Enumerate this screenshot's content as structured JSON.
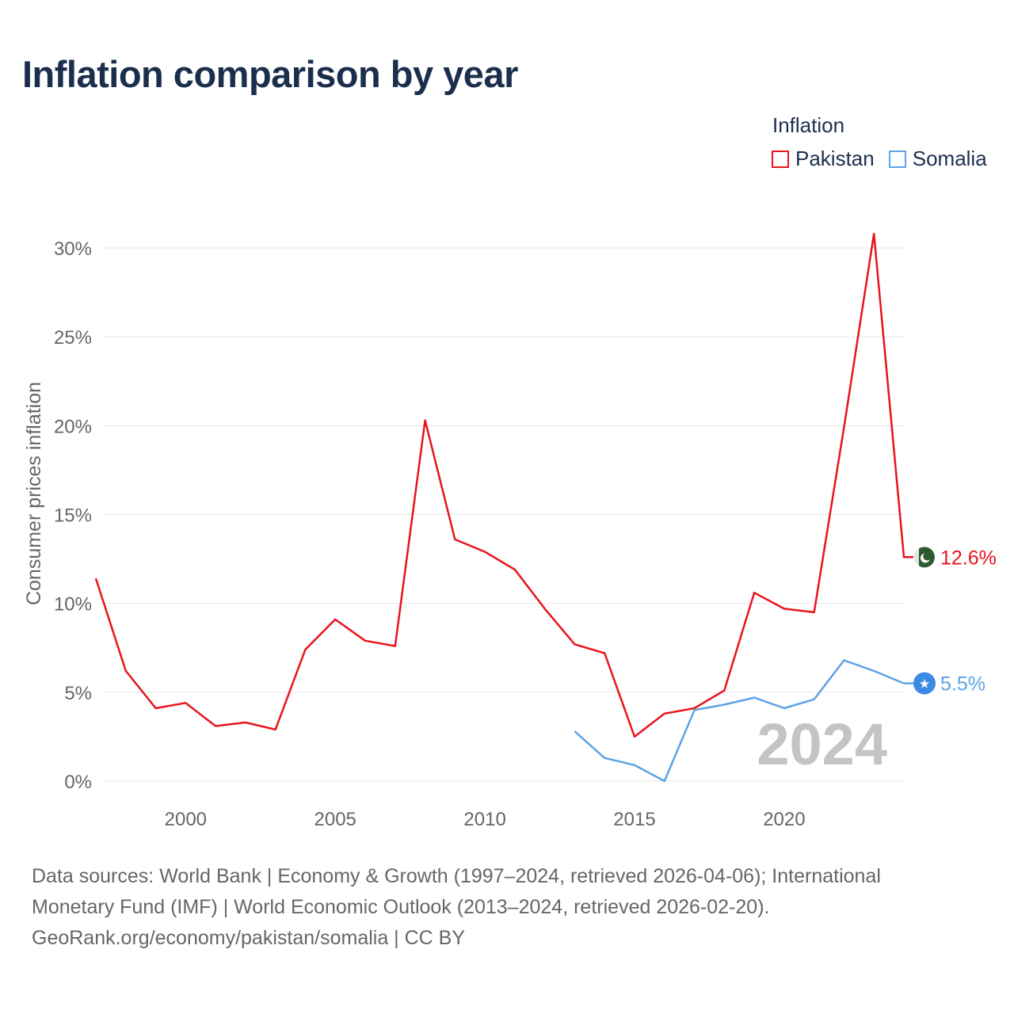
{
  "title": "Inflation comparison by year",
  "legend": {
    "title": "Inflation",
    "items": [
      {
        "label": "Pakistan",
        "color": "#e8141c"
      },
      {
        "label": "Somalia",
        "color": "#5ba3e6"
      }
    ]
  },
  "watermark_year": "2024",
  "footer": {
    "line1": "Data sources: World Bank | Economy & Growth (1997–2024, retrieved 2026-04-06); International",
    "line2": "Monetary Fund (IMF) | World Economic Outlook (2013–2024, retrieved 2026-02-20).",
    "line3": "GeoRank.org/economy/pakistan/somalia | CC BY"
  },
  "chart_data": {
    "type": "line",
    "title": "Inflation comparison by year",
    "xlabel": "",
    "ylabel": "Consumer prices inflation",
    "xlim": [
      1997,
      2024
    ],
    "ylim": [
      0,
      30
    ],
    "x_ticks": [
      2000,
      2005,
      2010,
      2015,
      2020
    ],
    "y_ticks": [
      0,
      5,
      10,
      15,
      20,
      25,
      30
    ],
    "y_tick_labels": [
      "0%",
      "5%",
      "10%",
      "15%",
      "20%",
      "25%",
      "30%"
    ],
    "grid": true,
    "series": [
      {
        "name": "Pakistan",
        "color": "#e8141c",
        "end_label": "12.6%",
        "end_badge_icon": "pakistan-flag-icon",
        "x": [
          1997,
          1998,
          1999,
          2000,
          2001,
          2002,
          2003,
          2004,
          2005,
          2006,
          2007,
          2008,
          2009,
          2010,
          2011,
          2012,
          2013,
          2014,
          2015,
          2016,
          2017,
          2018,
          2019,
          2020,
          2021,
          2022,
          2023,
          2024
        ],
        "values": [
          11.4,
          6.2,
          4.1,
          4.4,
          3.1,
          3.3,
          2.9,
          7.4,
          9.1,
          7.9,
          7.6,
          20.3,
          13.6,
          12.9,
          11.9,
          9.7,
          7.7,
          7.2,
          2.5,
          3.8,
          4.1,
          5.1,
          10.6,
          9.7,
          9.5,
          19.9,
          30.8,
          12.6
        ]
      },
      {
        "name": "Somalia",
        "color": "#5ba3e6",
        "end_label": "5.5%",
        "end_badge_icon": "somalia-flag-icon",
        "x": [
          2013,
          2014,
          2015,
          2016,
          2017,
          2018,
          2019,
          2020,
          2021,
          2022,
          2023,
          2024
        ],
        "values": [
          2.8,
          1.3,
          0.9,
          0.0,
          4.0,
          4.3,
          4.7,
          4.1,
          4.6,
          6.8,
          6.2,
          5.5
        ]
      }
    ]
  }
}
